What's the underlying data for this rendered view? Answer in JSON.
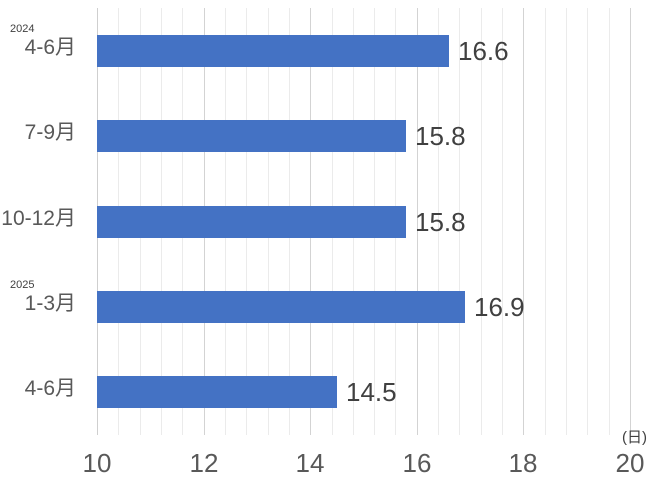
{
  "chart_data": {
    "type": "bar",
    "orientation": "horizontal",
    "title": "",
    "categories": [
      "4-6月",
      "7-9月",
      "10-12月",
      "1-3月",
      "4-6月"
    ],
    "year_markers": [
      {
        "index": 0,
        "label": "2024"
      },
      {
        "index": 3,
        "label": "2025"
      }
    ],
    "values": [
      16.6,
      15.8,
      15.8,
      16.9,
      14.5
    ],
    "value_labels": [
      "16.6",
      "15.8",
      "15.8",
      "16.9",
      "14.5"
    ],
    "xlabel_unit": "(日)",
    "xlim": [
      10,
      20
    ],
    "x_major_ticks": [
      "10",
      "12",
      "14",
      "16",
      "18",
      "20"
    ],
    "x_major_tick_values": [
      10,
      12,
      14,
      16,
      18,
      20
    ],
    "x_minor_step": 0.4,
    "grid": true,
    "legend": false,
    "colors": {
      "bar": "#4472C4",
      "grid_major": "#D3D3D3",
      "grid_minor": "#EBEBEB",
      "category_axis_line": "#CFCFCF",
      "tick_text": "#595959",
      "category_text": "#595959",
      "value_text": "#404040",
      "background": "#FFFFFF"
    }
  }
}
